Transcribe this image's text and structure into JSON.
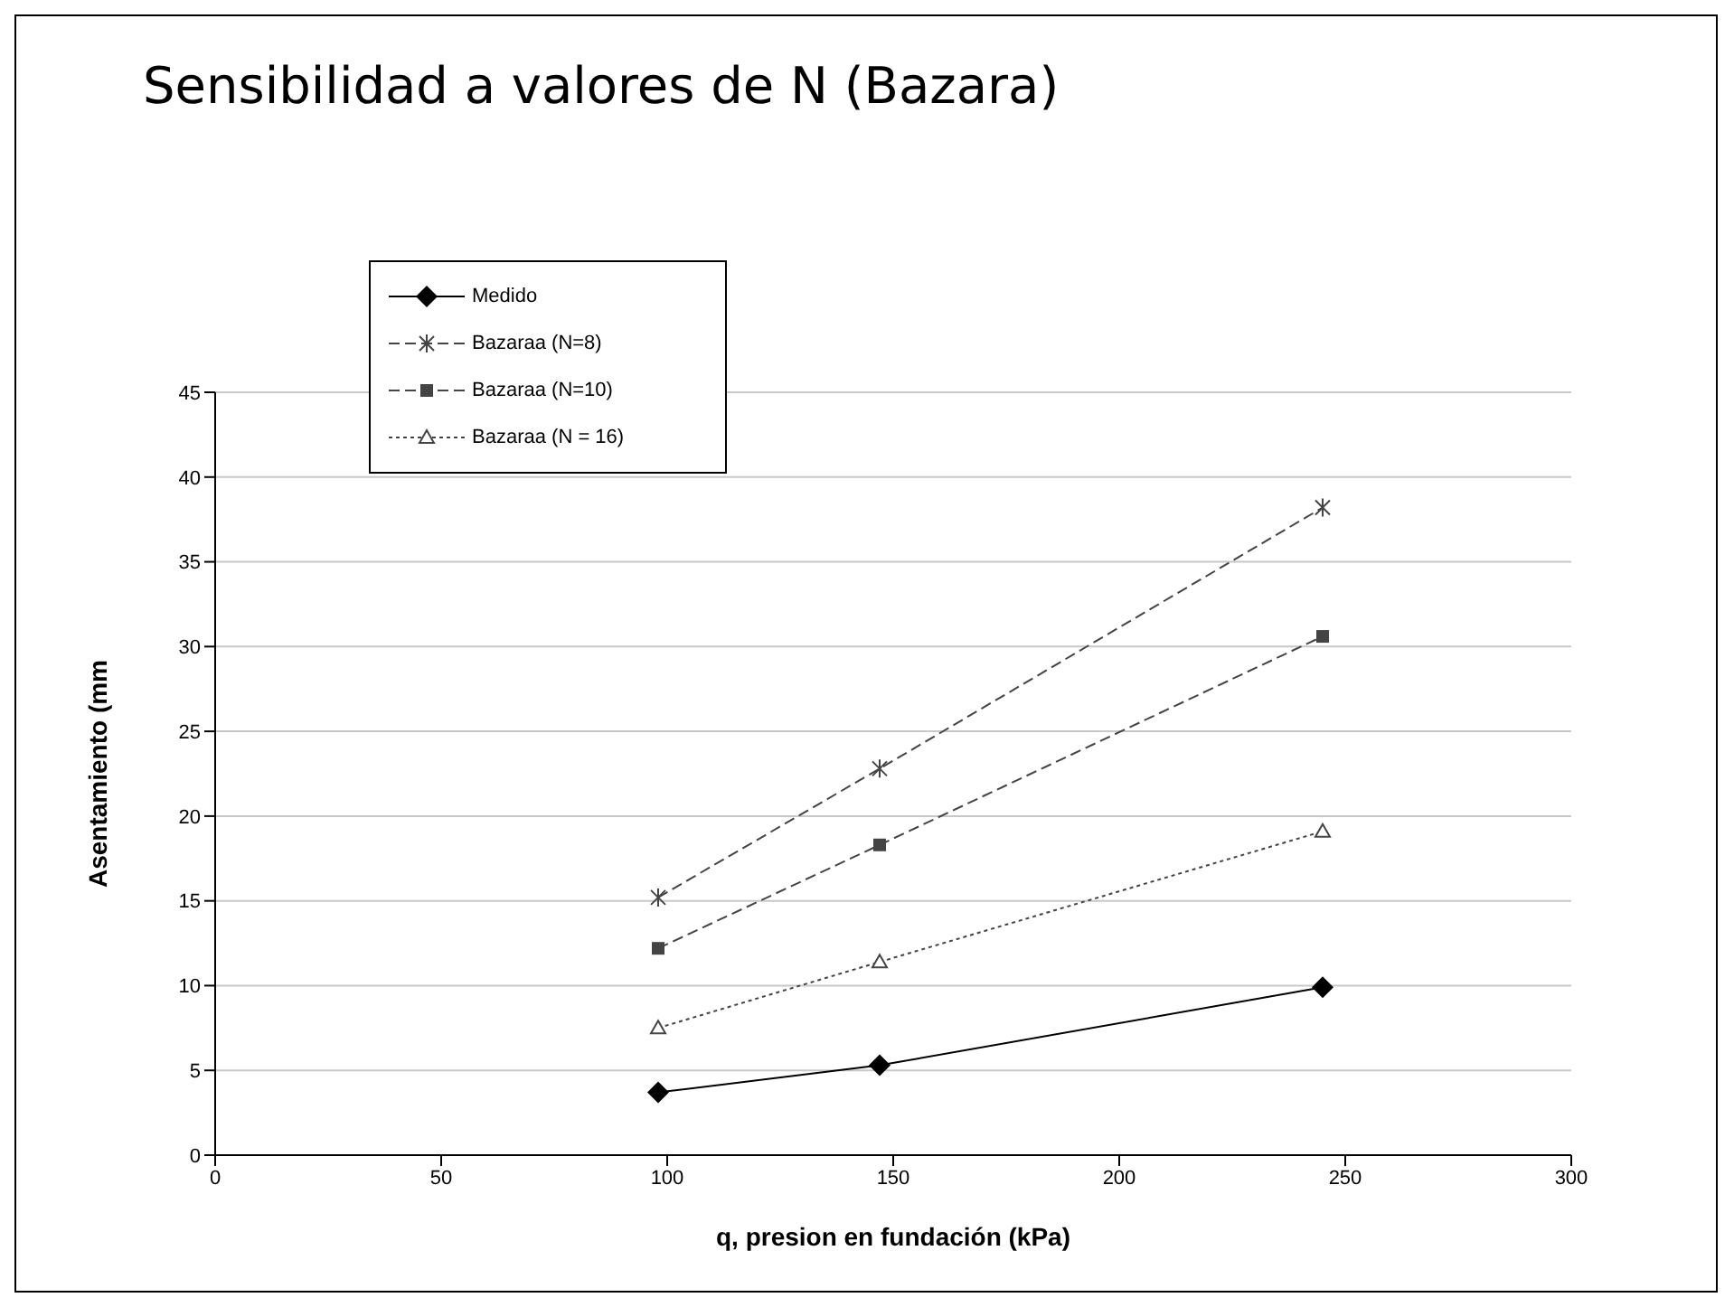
{
  "chart_data": {
    "type": "line",
    "title": "Sensibilidad a valores de N (Bazara)",
    "xlabel": "q, presion en fundación (kPa)",
    "ylabel": "Asentamiento (mm",
    "x": [
      98,
      147,
      245
    ],
    "series": [
      {
        "name": "Medido",
        "color": "#000000",
        "values": [
          3.7,
          5.3,
          9.9
        ],
        "marker": "diamond",
        "line_style": "solid"
      },
      {
        "name": "Bazaraa (N=8)",
        "color": "#444444",
        "values": [
          15.2,
          22.8,
          38.2
        ],
        "marker": "cross",
        "line_style": "dashed"
      },
      {
        "name": "Bazaraa (N=10)",
        "color": "#444444",
        "values": [
          12.2,
          18.3,
          30.6
        ],
        "marker": "square",
        "line_style": "dashed"
      },
      {
        "name": "Bazaraa (N = 16)",
        "color": "#444444",
        "values": [
          7.5,
          11.4,
          19.1
        ],
        "marker": "triangle",
        "line_style": "dotted"
      }
    ],
    "xlim": [
      0,
      300
    ],
    "xticks": [
      0,
      50,
      100,
      150,
      200,
      250,
      300
    ],
    "ylim": [
      0,
      45
    ],
    "yticks": [
      0,
      5,
      10,
      15,
      20,
      25,
      30,
      35,
      40,
      45
    ],
    "grid": "y",
    "legend": "top left"
  }
}
